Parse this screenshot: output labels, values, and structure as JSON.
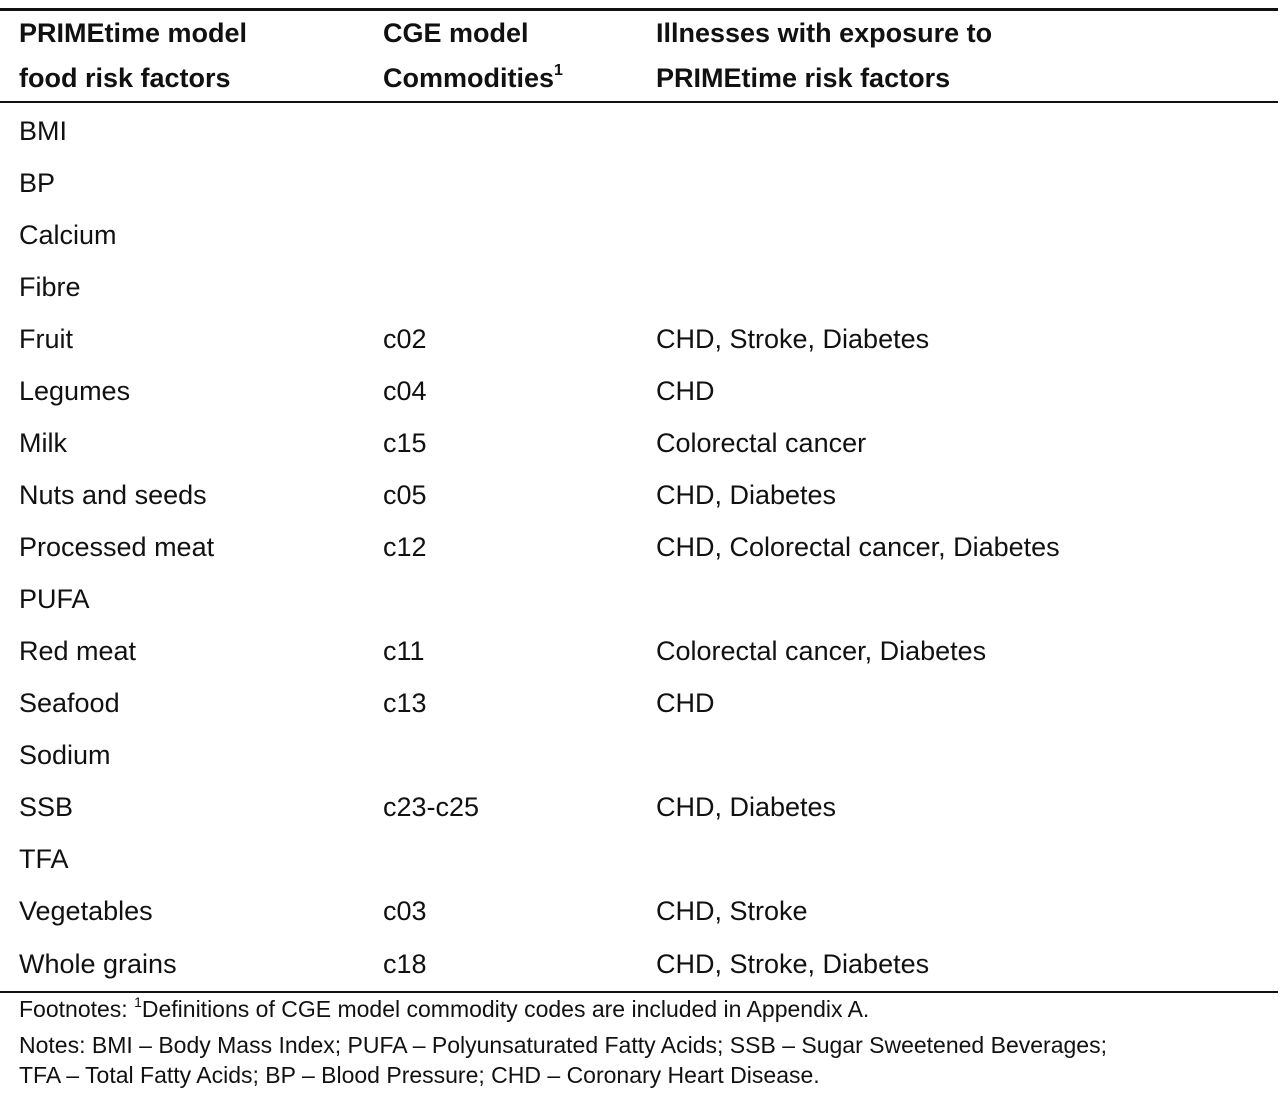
{
  "table": {
    "headers": {
      "col1": [
        "PRIMEtime model",
        "food risk factors"
      ],
      "col2": [
        "CGE model",
        "Commodities"
      ],
      "col2_sup": "1",
      "col3": [
        "Illnesses with exposure to",
        "PRIMEtime risk factors"
      ]
    },
    "rows": [
      {
        "factor": "BMI",
        "commodity": "",
        "illness": ""
      },
      {
        "factor": "BP",
        "commodity": "",
        "illness": ""
      },
      {
        "factor": "Calcium",
        "commodity": "",
        "illness": ""
      },
      {
        "factor": "Fibre",
        "commodity": "",
        "illness": ""
      },
      {
        "factor": "Fruit",
        "commodity": "c02",
        "illness": "CHD, Stroke, Diabetes"
      },
      {
        "factor": "Legumes",
        "commodity": "c04",
        "illness": "CHD"
      },
      {
        "factor": "Milk",
        "commodity": "c15",
        "illness": "Colorectal cancer"
      },
      {
        "factor": "Nuts and seeds",
        "commodity": "c05",
        "illness": "CHD, Diabetes"
      },
      {
        "factor": "Processed meat",
        "commodity": "c12",
        "illness": "CHD, Colorectal cancer, Diabetes"
      },
      {
        "factor": "PUFA",
        "commodity": "",
        "illness": ""
      },
      {
        "factor": "Red meat",
        "commodity": "c11",
        "illness": "Colorectal cancer, Diabetes"
      },
      {
        "factor": "Seafood",
        "commodity": "c13",
        "illness": "CHD"
      },
      {
        "factor": "Sodium",
        "commodity": "",
        "illness": ""
      },
      {
        "factor": "SSB",
        "commodity": "c23-c25",
        "illness": "CHD, Diabetes"
      },
      {
        "factor": "TFA",
        "commodity": "",
        "illness": ""
      },
      {
        "factor": "Vegetables",
        "commodity": "c03",
        "illness": "CHD, Stroke"
      },
      {
        "factor": "Whole grains",
        "commodity": "c18",
        "illness": "CHD, Stroke, Diabetes"
      }
    ]
  },
  "footnotes": {
    "prefix": "Footnotes: ",
    "sup": "1",
    "text": "Definitions of CGE model commodity codes are included in Appendix A."
  },
  "notes": {
    "line1": "Notes: BMI – Body Mass Index; PUFA – Polyunsaturated Fatty Acids; SSB – Sugar Sweetened Beverages;",
    "line2": "TFA – Total Fatty Acids; BP – Blood Pressure; CHD – Coronary Heart Disease."
  }
}
